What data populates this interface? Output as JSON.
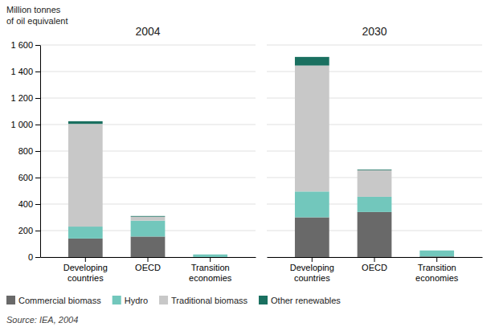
{
  "chart_data": [
    {
      "type": "bar",
      "stacked": true,
      "title": "2004",
      "ylabel": "Million tonnes\nof oil equivalent",
      "annotations": [
        "Source: IEA, 2004"
      ],
      "categories": [
        "Developing\ncountries",
        "OECD",
        "Transition\neconomies"
      ],
      "series": [
        {
          "name": "Commercial biomass",
          "color": "#696969",
          "values": [
            140,
            155,
            0
          ]
        },
        {
          "name": "Hydro",
          "color": "#72c7bc",
          "values": [
            90,
            120,
            20
          ]
        },
        {
          "name": "Traditional biomass",
          "color": "#c8c8c8",
          "values": [
            775,
            30,
            0
          ]
        },
        {
          "name": "Other renewables",
          "color": "#1a7060",
          "values": [
            20,
            5,
            0
          ]
        }
      ],
      "ylim": [
        0,
        1600
      ],
      "yticks": [
        0,
        200,
        400,
        600,
        800,
        {
          "value": 1000,
          "label": "1 000"
        },
        {
          "value": 1200,
          "label": "1 200"
        },
        {
          "value": 1400,
          "label": "1 400"
        },
        {
          "value": 1600,
          "label": "1 600"
        }
      ],
      "grid": true,
      "legend": "bottom"
    },
    {
      "type": "bar",
      "stacked": true,
      "title": "2030",
      "categories": [
        "Developing\ncountries",
        "OECD",
        "Transition\neconomies"
      ],
      "series": [
        {
          "name": "Commercial biomass",
          "color": "#696969",
          "values": [
            300,
            340,
            5
          ]
        },
        {
          "name": "Hydro",
          "color": "#72c7bc",
          "values": [
            195,
            115,
            45
          ]
        },
        {
          "name": "Traditional biomass",
          "color": "#c8c8c8",
          "values": [
            950,
            200,
            0
          ]
        },
        {
          "name": "Other renewables",
          "color": "#1a7060",
          "values": [
            65,
            5,
            0
          ]
        }
      ],
      "ylim": [
        0,
        1600
      ],
      "yticks": [
        0,
        200,
        400,
        600,
        800,
        1000,
        1200,
        1400,
        1600
      ],
      "grid": true,
      "tick_labels": "x"
    }
  ]
}
